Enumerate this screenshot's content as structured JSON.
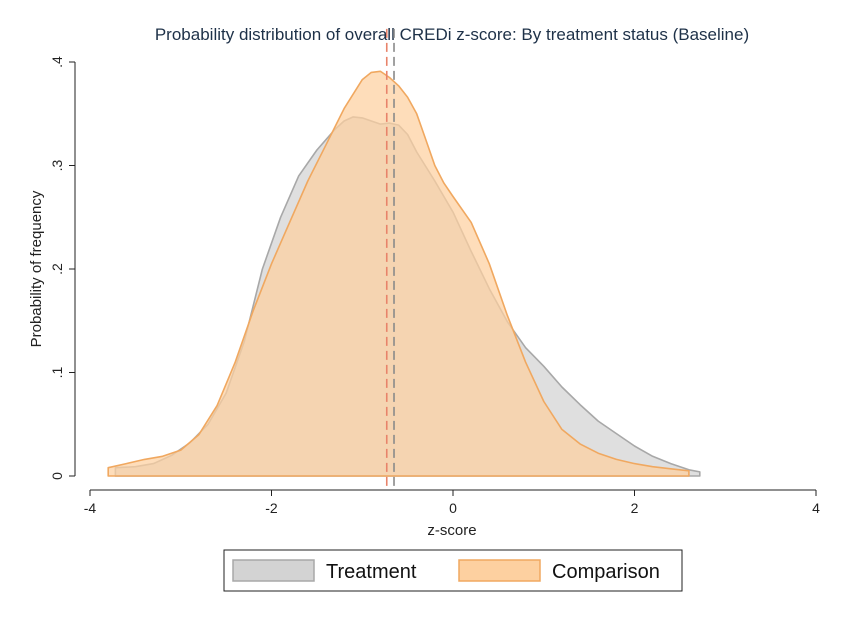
{
  "chart_data": {
    "type": "area",
    "title": "Probability distribution of overall CREDi z-score: By treatment status (Baseline)",
    "xlabel": "z-score",
    "ylabel": "Probability of frequency",
    "xlim": [
      -4,
      4
    ],
    "ylim": [
      0,
      0.4
    ],
    "x_ticks": [
      -4,
      -2,
      0,
      2,
      4
    ],
    "x_tick_labels": [
      "-4",
      "-2",
      "0",
      "2",
      "4"
    ],
    "y_ticks": [
      0,
      0.1,
      0.2,
      0.3,
      0.4
    ],
    "y_tick_labels": [
      "0",
      ".1",
      ".2",
      ".3",
      ".4"
    ],
    "grid": false,
    "legend_position": "bottom",
    "series": [
      {
        "name": "Treatment",
        "fill": "#d3d3d3",
        "stroke": "#a8a8a8",
        "mean": -0.65,
        "x": [
          -3.72,
          -3.5,
          -3.3,
          -3.1,
          -2.9,
          -2.7,
          -2.5,
          -2.3,
          -2.1,
          -1.9,
          -1.7,
          -1.5,
          -1.3,
          -1.2,
          -1.1,
          -1.0,
          -0.9,
          -0.8,
          -0.7,
          -0.6,
          -0.5,
          -0.4,
          -0.2,
          0.0,
          0.2,
          0.4,
          0.6,
          0.8,
          1.0,
          1.2,
          1.4,
          1.6,
          1.8,
          2.0,
          2.2,
          2.4,
          2.6,
          2.72
        ],
        "y": [
          0.008,
          0.009,
          0.012,
          0.02,
          0.032,
          0.05,
          0.08,
          0.13,
          0.2,
          0.25,
          0.29,
          0.315,
          0.335,
          0.343,
          0.347,
          0.346,
          0.343,
          0.34,
          0.341,
          0.339,
          0.33,
          0.313,
          0.285,
          0.255,
          0.217,
          0.181,
          0.149,
          0.124,
          0.106,
          0.086,
          0.069,
          0.053,
          0.041,
          0.029,
          0.019,
          0.012,
          0.006,
          0.004
        ]
      },
      {
        "name": "Comparison",
        "fill": "#fdd0a0",
        "stroke": "#f0a860",
        "mean": -0.73,
        "x": [
          -3.8,
          -3.6,
          -3.4,
          -3.2,
          -3.0,
          -2.8,
          -2.6,
          -2.4,
          -2.2,
          -2.0,
          -1.8,
          -1.6,
          -1.4,
          -1.2,
          -1.0,
          -0.9,
          -0.8,
          -0.7,
          -0.6,
          -0.5,
          -0.4,
          -0.3,
          -0.2,
          -0.1,
          0.0,
          0.2,
          0.4,
          0.6,
          0.8,
          1.0,
          1.2,
          1.4,
          1.6,
          1.8,
          2.0,
          2.2,
          2.4,
          2.6
        ],
        "y": [
          0.008,
          0.012,
          0.016,
          0.019,
          0.025,
          0.04,
          0.068,
          0.11,
          0.16,
          0.205,
          0.245,
          0.285,
          0.32,
          0.355,
          0.383,
          0.39,
          0.391,
          0.385,
          0.377,
          0.366,
          0.35,
          0.325,
          0.3,
          0.283,
          0.27,
          0.245,
          0.205,
          0.155,
          0.11,
          0.072,
          0.045,
          0.031,
          0.022,
          0.016,
          0.012,
          0.009,
          0.007,
          0.005
        ]
      }
    ]
  }
}
